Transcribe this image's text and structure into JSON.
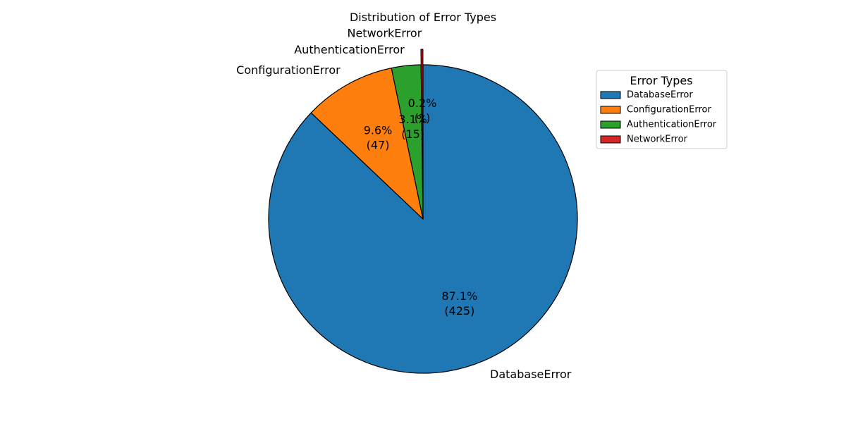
{
  "chart_data": {
    "type": "pie",
    "title": "Distribution of Error Types",
    "categories": [
      "DatabaseError",
      "ConfigurationError",
      "AuthenticationError",
      "NetworkError"
    ],
    "values": [
      425,
      47,
      15,
      1
    ],
    "percent_labels": [
      "87.1%",
      "9.6%",
      "3.1%",
      "0.2%"
    ],
    "count_labels": [
      "(425)",
      "(47)",
      "(15)",
      "(1)"
    ],
    "colors": [
      "#1f77b4",
      "#ff7f0e",
      "#2ca02c",
      "#d62728"
    ],
    "exploded": [
      false,
      false,
      false,
      true
    ],
    "start_angle_deg": 90,
    "direction": "clockwise",
    "legend": {
      "title": "Error Types",
      "placement": "top-right",
      "entries": [
        "DatabaseError",
        "ConfigurationError",
        "AuthenticationError",
        "NetworkError"
      ]
    }
  }
}
